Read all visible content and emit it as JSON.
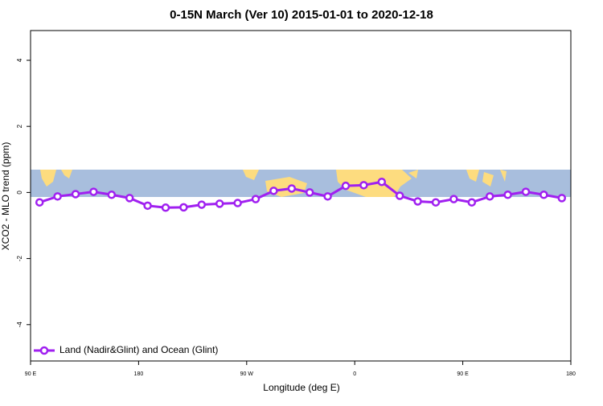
{
  "chart_data": {
    "type": "line",
    "title": "0-15N March (Ver 10)   2015-01-01 to 2020-12-18",
    "x_label": "Longitude (deg E)",
    "y_label": "XCO2 - MLO trend (ppm)",
    "x": [
      97.5,
      112.5,
      127.5,
      142.5,
      157.5,
      172.5,
      187.5,
      202.5,
      217.5,
      232.5,
      247.5,
      262.5,
      277.5,
      292.5,
      307.5,
      322.5,
      337.5,
      352.5,
      367.5,
      382.5,
      397.5,
      412.5,
      427.5,
      442.5,
      457.5,
      472.5,
      487.5,
      502.5,
      517.5,
      532.5
    ],
    "series": [
      {
        "name": "Land (Nadir&Glint) and Ocean (Glint)",
        "color": "#a020f0",
        "values": [
          -0.3,
          -0.12,
          -0.05,
          0.02,
          -0.07,
          -0.17,
          -0.4,
          -0.46,
          -0.45,
          -0.37,
          -0.34,
          -0.32,
          -0.2,
          0.05,
          0.12,
          0,
          -0.12,
          0.2,
          0.22,
          0.32,
          -0.1,
          -0.27,
          -0.3,
          -0.2,
          -0.3,
          -0.12,
          -0.07,
          0.02,
          -0.07,
          -0.17
        ]
      }
    ],
    "xlim": [
      90,
      540
    ],
    "xticks": [
      {
        "value": 90,
        "label": "90 E"
      },
      180,
      {
        "value": 270,
        "label": "90 W"
      },
      {
        "value": 360,
        "label": "0"
      },
      {
        "value": 450,
        "label": "90 E"
      },
      {
        "value": 540,
        "label": "180"
      }
    ],
    "ylim": [
      -5.1,
      4.9
    ],
    "yticks": [
      -4,
      -2,
      0,
      2,
      4
    ],
    "legend": "bottom-left"
  }
}
